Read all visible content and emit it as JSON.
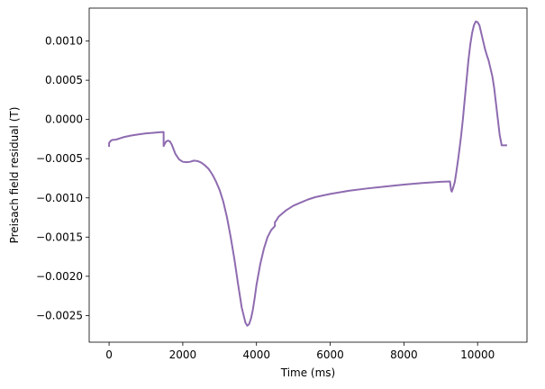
{
  "chart_data": {
    "type": "line",
    "title": "",
    "xlabel": "Time (ms)",
    "ylabel": "Preisach field residual (T)",
    "xlim": [
      -540,
      11340
    ],
    "ylim": [
      -0.00284,
      0.00142
    ],
    "xticks": [
      0,
      2000,
      4000,
      6000,
      8000,
      10000
    ],
    "xtick_labels": [
      "0",
      "2000",
      "4000",
      "6000",
      "8000",
      "10000"
    ],
    "yticks": [
      0.001,
      0.0005,
      0.0,
      -0.0005,
      -0.001,
      -0.0015,
      -0.002,
      -0.0025
    ],
    "ytick_labels": [
      "0.0010",
      "0.0005",
      "0.0000",
      "−0.0005",
      "−0.0010",
      "−0.0015",
      "−0.0020",
      "−0.0025"
    ],
    "grid": false,
    "legend": "none",
    "colors": {
      "line": "#8e6bb0",
      "axes": "#000000"
    },
    "series": [
      {
        "x": [
          0,
          0,
          50,
          100,
          150,
          200,
          300,
          400,
          600,
          800,
          1000,
          1200,
          1400,
          1480,
          1480,
          1500,
          1550,
          1600,
          1650,
          1700,
          1750,
          1800,
          1900,
          2000,
          2100,
          2200,
          2300,
          2400,
          2500,
          2600,
          2700,
          2800,
          2900,
          3000,
          3100,
          3200,
          3300,
          3400,
          3500,
          3600,
          3700,
          3750,
          3800,
          3850,
          3900,
          3950,
          4000,
          4100,
          4200,
          4300,
          4400,
          4500,
          4500,
          4550,
          4600,
          4700,
          4800,
          4900,
          5000,
          5200,
          5400,
          5600,
          5800,
          6000,
          6500,
          7000,
          7500,
          8000,
          8500,
          9000,
          9250,
          9280,
          9300,
          9330,
          9380,
          9420,
          9480,
          9550,
          9600,
          9650,
          9700,
          9750,
          9800,
          9850,
          9900,
          9950,
          10000,
          10050,
          10100,
          10150,
          10200,
          10250,
          10300,
          10350,
          10400,
          10450,
          10500,
          10550,
          10600,
          10650,
          10650,
          10800
        ],
        "y": [
          -0.00035,
          -0.0003,
          -0.00027,
          -0.00026,
          -0.00026,
          -0.000255,
          -0.00024,
          -0.000225,
          -0.000205,
          -0.00019,
          -0.000178,
          -0.00017,
          -0.000162,
          -0.00016,
          -0.00034,
          -0.00032,
          -0.00028,
          -0.00027,
          -0.00028,
          -0.00032,
          -0.00038,
          -0.00044,
          -0.00051,
          -0.00054,
          -0.000545,
          -0.00054,
          -0.000525,
          -0.00053,
          -0.00055,
          -0.000585,
          -0.00063,
          -0.0007,
          -0.00079,
          -0.0009,
          -0.00105,
          -0.00125,
          -0.0015,
          -0.00178,
          -0.0021,
          -0.0024,
          -0.00259,
          -0.00263,
          -0.00261,
          -0.00254,
          -0.00243,
          -0.00228,
          -0.00211,
          -0.00185,
          -0.00165,
          -0.0015,
          -0.00141,
          -0.00136,
          -0.00131,
          -0.00128,
          -0.00124,
          -0.0012,
          -0.00116,
          -0.00113,
          -0.0011,
          -0.00106,
          -0.00102,
          -0.00099,
          -0.00097,
          -0.00095,
          -0.00091,
          -0.00088,
          -0.000855,
          -0.00083,
          -0.00081,
          -0.000795,
          -0.00079,
          -0.0009,
          -0.00092,
          -0.00088,
          -0.0008,
          -0.00068,
          -0.00048,
          -0.00022,
          0.0,
          0.00025,
          0.0005,
          0.00075,
          0.00095,
          0.0011,
          0.0012,
          0.00125,
          0.00124,
          0.0012,
          0.0011,
          0.001,
          0.0009,
          0.00082,
          0.00075,
          0.00065,
          0.00055,
          0.0004,
          0.0002,
          0.0,
          -0.0002,
          -0.00032,
          -0.00033,
          -0.00033
        ]
      }
    ]
  }
}
